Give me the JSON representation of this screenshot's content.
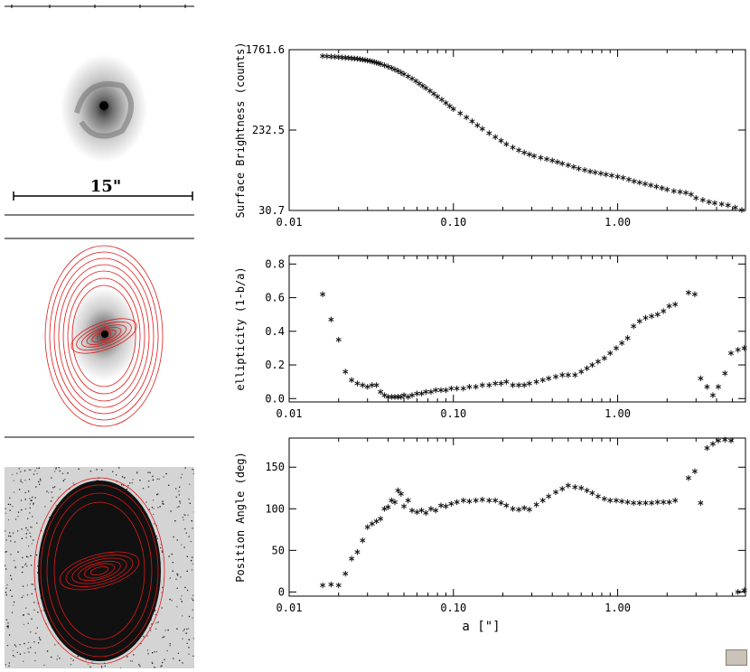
{
  "galaxy_panels": {
    "scale_bar_label": "15\""
  },
  "colors": {
    "ellipse": "#e01818",
    "marker": "#111111",
    "axis": "#000000"
  },
  "chart_data": [
    {
      "type": "scatter",
      "title": "",
      "xlabel": "",
      "ylabel": "Surface Brightness (counts)",
      "xscale": "log",
      "yscale": "log",
      "xlim": [
        0.01,
        6.0
      ],
      "ylim": [
        30.7,
        1761.6
      ],
      "xtick_labels": [
        "0.01",
        "0.10",
        "1.00"
      ],
      "xticks": [
        0.01,
        0.1,
        1.0
      ],
      "ytick_labels": [
        "1761.6",
        "232.5",
        "30.7"
      ],
      "yticks": [
        1761.6,
        232.5,
        30.7
      ],
      "series": [
        {
          "marker": "asterisk",
          "x": [
            0.016,
            0.017,
            0.018,
            0.019,
            0.02,
            0.021,
            0.022,
            0.023,
            0.024,
            0.025,
            0.026,
            0.027,
            0.028,
            0.029,
            0.03,
            0.031,
            0.032,
            0.033,
            0.034,
            0.035,
            0.036,
            0.038,
            0.04,
            0.042,
            0.044,
            0.046,
            0.048,
            0.05,
            0.053,
            0.056,
            0.059,
            0.062,
            0.065,
            0.068,
            0.072,
            0.076,
            0.08,
            0.085,
            0.09,
            0.095,
            0.1,
            0.11,
            0.12,
            0.13,
            0.14,
            0.15,
            0.165,
            0.18,
            0.195,
            0.21,
            0.23,
            0.25,
            0.27,
            0.29,
            0.31,
            0.34,
            0.37,
            0.4,
            0.43,
            0.46,
            0.5,
            0.54,
            0.58,
            0.63,
            0.68,
            0.73,
            0.79,
            0.85,
            0.92,
            1.0,
            1.08,
            1.17,
            1.26,
            1.36,
            1.47,
            1.59,
            1.72,
            1.86,
            2.0,
            2.2,
            2.4,
            2.6,
            2.8,
            3.0,
            3.3,
            3.6,
            3.9,
            4.3,
            4.7,
            5.2,
            5.7
          ],
          "y": [
            1500,
            1490,
            1480,
            1470,
            1460,
            1450,
            1440,
            1430,
            1420,
            1410,
            1400,
            1385,
            1370,
            1355,
            1340,
            1325,
            1310,
            1290,
            1270,
            1250,
            1230,
            1190,
            1150,
            1110,
            1070,
            1030,
            990,
            950,
            900,
            850,
            800,
            750,
            710,
            670,
            625,
            580,
            540,
            500,
            460,
            425,
            395,
            355,
            320,
            290,
            262,
            240,
            215,
            195,
            178,
            163,
            150,
            140,
            132,
            126,
            121,
            116,
            112,
            108,
            104,
            100,
            96,
            92,
            88,
            85,
            82,
            80,
            78,
            76,
            74,
            72,
            70,
            67,
            64,
            62,
            60,
            58,
            56,
            54,
            52,
            50,
            49,
            48,
            46,
            42,
            40,
            38,
            37,
            36,
            35,
            33,
            31
          ]
        }
      ]
    },
    {
      "type": "scatter",
      "title": "",
      "xlabel": "",
      "ylabel": "ellipticity (1-b/a)",
      "xscale": "log",
      "xlim": [
        0.01,
        6.0
      ],
      "ylim": [
        -0.02,
        0.85
      ],
      "xtick_labels": [
        "0.01",
        "0.10",
        "1.00"
      ],
      "xticks": [
        0.01,
        0.1,
        1.0
      ],
      "ytick_labels": [
        "0.0",
        "0.2",
        "0.4",
        "0.6",
        "0.8"
      ],
      "yticks": [
        0.0,
        0.2,
        0.4,
        0.6,
        0.8
      ],
      "series": [
        {
          "marker": "asterisk",
          "x": [
            0.016,
            0.018,
            0.02,
            0.022,
            0.024,
            0.026,
            0.028,
            0.03,
            0.032,
            0.034,
            0.036,
            0.038,
            0.04,
            0.042,
            0.044,
            0.046,
            0.048,
            0.05,
            0.053,
            0.056,
            0.06,
            0.064,
            0.068,
            0.073,
            0.078,
            0.084,
            0.09,
            0.097,
            0.105,
            0.115,
            0.125,
            0.137,
            0.15,
            0.165,
            0.18,
            0.195,
            0.21,
            0.23,
            0.25,
            0.27,
            0.29,
            0.32,
            0.35,
            0.38,
            0.42,
            0.46,
            0.5,
            0.55,
            0.6,
            0.65,
            0.7,
            0.76,
            0.83,
            0.9,
            0.98,
            1.06,
            1.15,
            1.25,
            1.36,
            1.48,
            1.61,
            1.75,
            1.9,
            2.06,
            2.24,
            2.7,
            2.95,
            3.2,
            3.5,
            3.8,
            4.1,
            4.5,
            4.9,
            5.4,
            5.9
          ],
          "y": [
            0.62,
            0.47,
            0.35,
            0.16,
            0.11,
            0.09,
            0.08,
            0.07,
            0.08,
            0.08,
            0.04,
            0.02,
            0.01,
            0.01,
            0.01,
            0.01,
            0.01,
            0.02,
            0.01,
            0.02,
            0.03,
            0.03,
            0.04,
            0.04,
            0.05,
            0.05,
            0.05,
            0.06,
            0.06,
            0.06,
            0.07,
            0.07,
            0.08,
            0.08,
            0.09,
            0.09,
            0.1,
            0.08,
            0.08,
            0.08,
            0.09,
            0.1,
            0.11,
            0.12,
            0.13,
            0.14,
            0.14,
            0.14,
            0.16,
            0.18,
            0.2,
            0.22,
            0.24,
            0.27,
            0.3,
            0.33,
            0.36,
            0.43,
            0.46,
            0.48,
            0.49,
            0.5,
            0.52,
            0.55,
            0.56,
            0.63,
            0.62,
            0.12,
            0.07,
            0.02,
            0.07,
            0.15,
            0.27,
            0.29,
            0.3
          ]
        }
      ]
    },
    {
      "type": "scatter",
      "title": "",
      "xlabel": "a [\"]",
      "ylabel": "Position Angle (deg)",
      "xscale": "log",
      "xlim": [
        0.01,
        6.0
      ],
      "ylim": [
        -5,
        185
      ],
      "xtick_labels": [
        "0.01",
        "0.10",
        "1.00"
      ],
      "xticks": [
        0.01,
        0.1,
        1.0
      ],
      "ytick_labels": [
        "0",
        "50",
        "100",
        "150"
      ],
      "yticks": [
        0,
        50,
        100,
        150
      ],
      "series": [
        {
          "marker": "asterisk",
          "x": [
            0.016,
            0.018,
            0.02,
            0.022,
            0.024,
            0.026,
            0.028,
            0.03,
            0.032,
            0.034,
            0.036,
            0.038,
            0.04,
            0.042,
            0.044,
            0.046,
            0.048,
            0.05,
            0.053,
            0.056,
            0.06,
            0.064,
            0.068,
            0.073,
            0.078,
            0.084,
            0.09,
            0.097,
            0.105,
            0.115,
            0.125,
            0.137,
            0.15,
            0.165,
            0.18,
            0.195,
            0.21,
            0.23,
            0.25,
            0.27,
            0.29,
            0.32,
            0.35,
            0.38,
            0.42,
            0.46,
            0.5,
            0.55,
            0.6,
            0.65,
            0.7,
            0.76,
            0.83,
            0.9,
            0.98,
            1.06,
            1.15,
            1.25,
            1.36,
            1.48,
            1.61,
            1.75,
            1.9,
            2.06,
            2.24,
            2.7,
            2.95,
            3.2,
            3.5,
            3.8,
            4.1,
            4.5,
            4.9,
            5.4,
            5.9
          ],
          "y": [
            8,
            9,
            8,
            22,
            40,
            48,
            62,
            78,
            82,
            85,
            88,
            100,
            102,
            110,
            108,
            122,
            118,
            103,
            110,
            98,
            96,
            98,
            95,
            100,
            98,
            104,
            103,
            106,
            108,
            110,
            109,
            110,
            111,
            110,
            110,
            107,
            104,
            100,
            99,
            101,
            99,
            105,
            110,
            115,
            120,
            124,
            128,
            126,
            125,
            122,
            119,
            115,
            112,
            110,
            110,
            109,
            108,
            107,
            107,
            107,
            107,
            108,
            108,
            108,
            110,
            137,
            145,
            107,
            173,
            178,
            182,
            183,
            182,
            0,
            2
          ]
        }
      ]
    }
  ]
}
